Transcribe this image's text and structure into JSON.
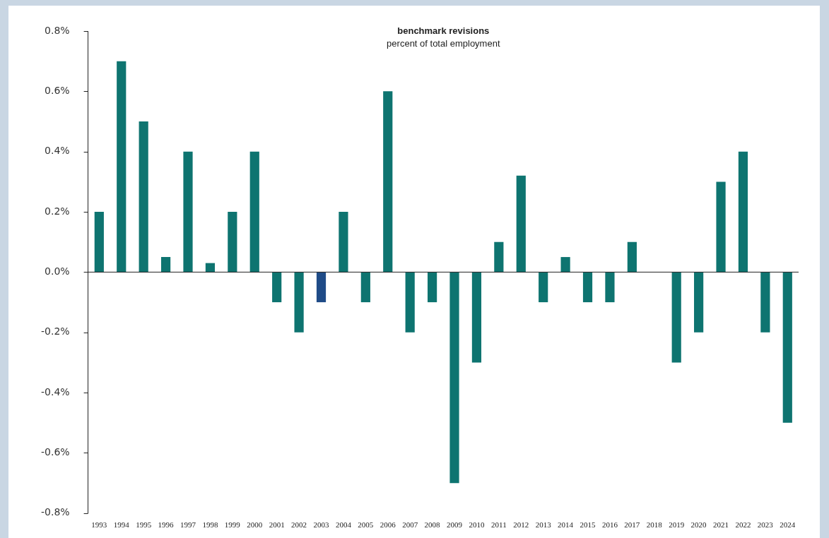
{
  "chart_data": {
    "type": "bar",
    "title": "benchmark revisions",
    "subtitle": "percent of total employment",
    "categories": [
      "1993",
      "1994",
      "1995",
      "1996",
      "1997",
      "1998",
      "1999",
      "2000",
      "2001",
      "2002",
      "2003",
      "2004",
      "2005",
      "2006",
      "2007",
      "2008",
      "2009",
      "2010",
      "2011",
      "2012",
      "2013",
      "2014",
      "2015",
      "2016",
      "2017",
      "2018",
      "2019",
      "2020",
      "2021",
      "2022",
      "2023",
      "2024"
    ],
    "values": [
      0.2,
      0.7,
      0.5,
      0.05,
      0.4,
      0.03,
      0.2,
      0.4,
      -0.1,
      -0.2,
      -0.1,
      0.2,
      -0.1,
      0.6,
      -0.2,
      -0.1,
      -0.7,
      -0.3,
      0.1,
      0.32,
      -0.1,
      0.05,
      -0.1,
      -0.1,
      0.1,
      0,
      -0.3,
      -0.2,
      0.3,
      0.4,
      -0.2,
      -0.5
    ],
    "colors": [
      "#0e7470",
      "#0e7470",
      "#0e7470",
      "#0e7470",
      "#0e7470",
      "#0e7470",
      "#0e7470",
      "#0e7470",
      "#0e7470",
      "#0e7470",
      "#1f4b87",
      "#0e7470",
      "#0e7470",
      "#0e7470",
      "#0e7470",
      "#0e7470",
      "#0e7470",
      "#0e7470",
      "#0e7470",
      "#0e7470",
      "#0e7470",
      "#0e7470",
      "#0e7470",
      "#0e7470",
      "#0e7470",
      "#0e7470",
      "#0e7470",
      "#0e7470",
      "#0e7470",
      "#0e7470",
      "#0e7470",
      "#0e7470"
    ],
    "ylim": [
      -0.8,
      0.8
    ],
    "yticks": [
      {
        "value": -0.8,
        "label": "-0.8%"
      },
      {
        "value": -0.6,
        "label": "-0.6%"
      },
      {
        "value": -0.4,
        "label": "-0.4%"
      },
      {
        "value": -0.2,
        "label": "-0.2%"
      },
      {
        "value": 0,
        "label": "0.0%"
      },
      {
        "value": 0.2,
        "label": "0.2%"
      },
      {
        "value": 0.4,
        "label": "0.4%"
      },
      {
        "value": 0.6,
        "label": "0.6%"
      },
      {
        "value": 0.8,
        "label": "0.8%"
      }
    ],
    "legend": false
  }
}
